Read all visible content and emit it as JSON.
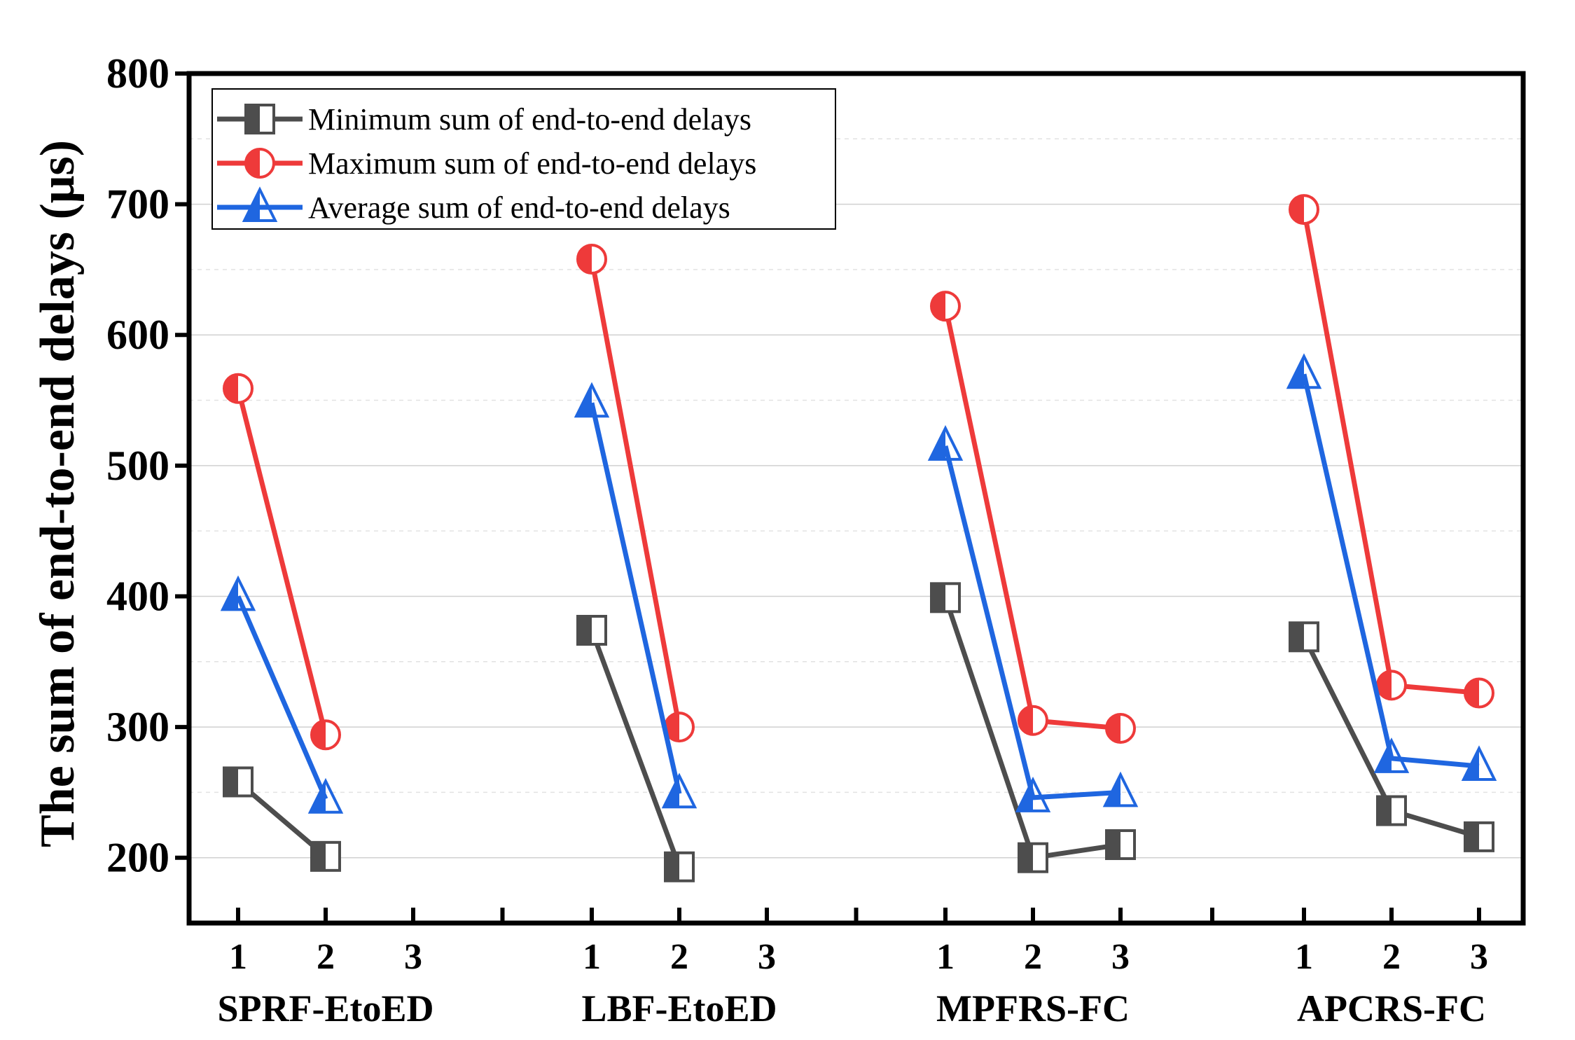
{
  "chart_data": {
    "type": "line",
    "title": "",
    "ylabel": "The sum of end-to-end delays (μs)",
    "xlabel": "",
    "ylim": [
      150,
      800
    ],
    "yticks": [
      200,
      300,
      400,
      500,
      600,
      700,
      800
    ],
    "grid": true,
    "legend_position": "top-left",
    "groups": [
      {
        "name": "SPRF-EtoED",
        "ticks": [
          "1",
          "2",
          "3"
        ]
      },
      {
        "name": "LBF-EtoED",
        "ticks": [
          "1",
          "2",
          "3"
        ]
      },
      {
        "name": "MPFRS-FC",
        "ticks": [
          "1",
          "2",
          "3"
        ]
      },
      {
        "name": "APCRS-FC",
        "ticks": [
          "1",
          "2",
          "3"
        ]
      }
    ],
    "series": [
      {
        "name": "Minimum  sum of end-to-end delays",
        "marker": "half-filled-square",
        "color": "#4d4d4d",
        "values": [
          [
            258,
            201,
            null
          ],
          [
            374,
            193,
            null
          ],
          [
            399,
            200,
            210
          ],
          [
            369,
            236,
            216
          ]
        ]
      },
      {
        "name": "Maximum sum of end-to-end delays",
        "marker": "half-filled-circle",
        "color": "#ee3a3a",
        "values": [
          [
            559,
            294,
            null
          ],
          [
            658,
            300,
            null
          ],
          [
            622,
            305,
            299
          ],
          [
            696,
            332,
            326
          ]
        ]
      },
      {
        "name": "Average sum of end-to-end delays",
        "marker": "half-filled-triangle",
        "color": "#1f66e0",
        "values": [
          [
            400,
            245,
            null
          ],
          [
            548,
            249,
            null
          ],
          [
            515,
            246,
            250
          ],
          [
            570,
            276,
            270
          ]
        ]
      }
    ]
  }
}
